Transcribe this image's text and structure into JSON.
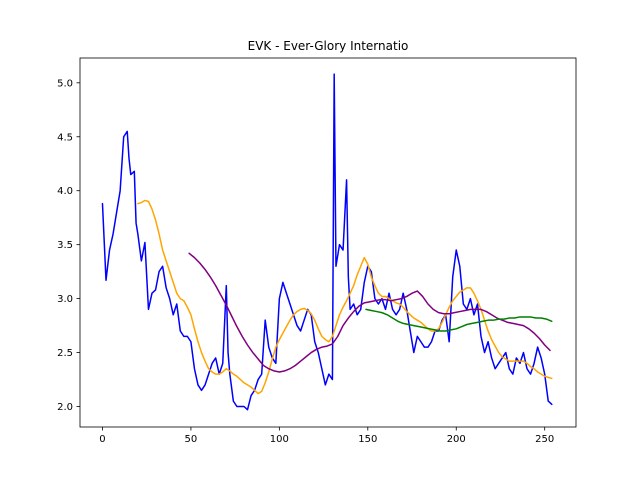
{
  "chart_data": {
    "type": "line",
    "title": "EVK - Ever-Glory Internatio",
    "xlabel": "",
    "ylabel": "",
    "xlim": [
      -12.7,
      267.7
    ],
    "ylim": [
      1.81,
      5.23
    ],
    "xticks": [
      0,
      50,
      100,
      150,
      200,
      250
    ],
    "xtick_labels": [
      "0",
      "50",
      "100",
      "150",
      "200",
      "250"
    ],
    "yticks": [
      2.0,
      2.5,
      3.0,
      3.5,
      4.0,
      4.5,
      5.0
    ],
    "ytick_labels": [
      "2.0",
      "2.5",
      "3.0",
      "3.5",
      "4.0",
      "4.5",
      "5.0"
    ],
    "grid": false,
    "legend": "none",
    "series": [
      {
        "color": "#0000ff",
        "x": [
          0,
          2,
          4,
          6,
          8,
          10,
          12,
          14,
          15,
          16,
          18,
          19,
          20,
          22,
          24,
          26,
          28,
          30,
          32,
          34,
          36,
          38,
          40,
          42,
          44,
          46,
          48,
          50,
          52,
          54,
          56,
          58,
          60,
          62,
          64,
          66,
          68,
          70,
          71,
          72,
          74,
          76,
          78,
          80,
          82,
          84,
          86,
          88,
          90,
          92,
          94,
          96,
          98,
          100,
          102,
          104,
          106,
          108,
          110,
          112,
          114,
          116,
          118,
          120,
          122,
          124,
          126,
          128,
          130,
          131,
          132,
          134,
          136,
          138,
          139,
          140,
          142,
          144,
          146,
          148,
          150,
          152,
          154,
          156,
          158,
          160,
          162,
          164,
          166,
          168,
          170,
          172,
          174,
          176,
          178,
          180,
          182,
          184,
          186,
          188,
          190,
          192,
          194,
          196,
          198,
          200,
          202,
          204,
          206,
          208,
          210,
          212,
          214,
          216,
          218,
          220,
          222,
          224,
          226,
          228,
          230,
          232,
          234,
          236,
          238,
          240,
          242,
          244,
          246,
          248,
          250,
          252,
          254
        ],
        "y": [
          3.88,
          3.17,
          3.45,
          3.6,
          3.8,
          4.0,
          4.5,
          4.55,
          4.3,
          4.15,
          4.18,
          3.7,
          3.6,
          3.35,
          3.52,
          2.9,
          3.05,
          3.08,
          3.25,
          3.3,
          3.1,
          3.0,
          2.85,
          2.95,
          2.7,
          2.65,
          2.65,
          2.6,
          2.35,
          2.2,
          2.15,
          2.2,
          2.3,
          2.4,
          2.45,
          2.3,
          2.4,
          3.12,
          2.5,
          2.3,
          2.05,
          2.0,
          2.0,
          2.0,
          1.97,
          2.1,
          2.15,
          2.25,
          2.3,
          2.8,
          2.55,
          2.45,
          2.4,
          3.0,
          3.15,
          3.05,
          2.95,
          2.85,
          2.75,
          2.7,
          2.8,
          2.9,
          2.85,
          2.6,
          2.5,
          2.35,
          2.2,
          2.3,
          2.25,
          5.08,
          3.3,
          3.5,
          3.45,
          4.1,
          3.2,
          2.9,
          2.95,
          2.85,
          2.9,
          3.15,
          3.3,
          3.25,
          3.0,
          2.95,
          3.0,
          2.9,
          3.05,
          2.9,
          2.85,
          2.9,
          3.05,
          2.9,
          2.7,
          2.5,
          2.65,
          2.6,
          2.55,
          2.55,
          2.6,
          2.7,
          2.7,
          2.8,
          2.85,
          2.6,
          3.2,
          3.45,
          3.3,
          2.95,
          2.9,
          3.0,
          2.85,
          2.95,
          2.65,
          2.5,
          2.6,
          2.45,
          2.35,
          2.4,
          2.45,
          2.5,
          2.35,
          2.3,
          2.45,
          2.4,
          2.5,
          2.35,
          2.3,
          2.4,
          2.55,
          2.45,
          2.3,
          2.05,
          2.02
        ]
      },
      {
        "color": "#ffa500",
        "x": [
          20,
          22,
          24,
          26,
          28,
          30,
          32,
          34,
          36,
          38,
          40,
          42,
          44,
          46,
          48,
          50,
          52,
          54,
          56,
          58,
          60,
          62,
          64,
          66,
          68,
          70,
          72,
          74,
          76,
          78,
          80,
          82,
          84,
          86,
          88,
          90,
          92,
          94,
          96,
          98,
          100,
          102,
          104,
          106,
          108,
          110,
          112,
          114,
          116,
          118,
          120,
          122,
          124,
          126,
          128,
          130,
          132,
          134,
          136,
          138,
          140,
          142,
          144,
          146,
          148,
          150,
          152,
          154,
          156,
          158,
          160,
          162,
          164,
          166,
          168,
          170,
          172,
          174,
          176,
          178,
          180,
          182,
          184,
          186,
          188,
          190,
          192,
          194,
          196,
          198,
          200,
          202,
          204,
          206,
          208,
          210,
          212,
          214,
          216,
          218,
          220,
          222,
          224,
          226,
          228,
          230,
          232,
          234,
          236,
          238,
          240,
          242,
          244,
          246,
          248,
          250,
          252,
          254
        ],
        "y": [
          3.88,
          3.89,
          3.91,
          3.9,
          3.83,
          3.73,
          3.6,
          3.45,
          3.35,
          3.25,
          3.15,
          3.05,
          3.0,
          2.98,
          2.92,
          2.85,
          2.72,
          2.6,
          2.5,
          2.42,
          2.35,
          2.32,
          2.3,
          2.3,
          2.32,
          2.35,
          2.33,
          2.3,
          2.28,
          2.25,
          2.22,
          2.2,
          2.18,
          2.15,
          2.12,
          2.14,
          2.22,
          2.32,
          2.44,
          2.55,
          2.62,
          2.68,
          2.74,
          2.8,
          2.85,
          2.88,
          2.9,
          2.91,
          2.89,
          2.86,
          2.8,
          2.72,
          2.65,
          2.62,
          2.6,
          2.65,
          2.75,
          2.85,
          2.92,
          2.98,
          3.05,
          3.12,
          3.22,
          3.3,
          3.38,
          3.32,
          3.2,
          3.12,
          3.05,
          3.02,
          3.02,
          3.0,
          2.98,
          2.96,
          2.95,
          2.92,
          2.88,
          2.85,
          2.82,
          2.8,
          2.78,
          2.75,
          2.72,
          2.7,
          2.7,
          2.72,
          2.78,
          2.85,
          2.92,
          2.98,
          3.02,
          3.06,
          3.08,
          3.1,
          3.1,
          3.05,
          2.98,
          2.9,
          2.8,
          2.7,
          2.62,
          2.56,
          2.5,
          2.46,
          2.44,
          2.42,
          2.42,
          2.42,
          2.42,
          2.42,
          2.4,
          2.37,
          2.35,
          2.32,
          2.3,
          2.28,
          2.27,
          2.26
        ]
      },
      {
        "color": "#800080",
        "x": [
          49,
          52,
          55,
          58,
          61,
          64,
          67,
          70,
          73,
          76,
          79,
          82,
          85,
          88,
          91,
          94,
          97,
          100,
          103,
          106,
          109,
          112,
          115,
          118,
          121,
          124,
          127,
          130,
          133,
          136,
          139,
          142,
          145,
          148,
          151,
          154,
          157,
          160,
          163,
          166,
          169,
          172,
          175,
          178,
          181,
          184,
          187,
          190,
          193,
          196,
          199,
          202,
          205,
          208,
          211,
          214,
          217,
          220,
          223,
          226,
          229,
          232,
          235,
          238,
          241,
          244,
          247,
          250,
          253
        ],
        "y": [
          3.42,
          3.38,
          3.33,
          3.27,
          3.2,
          3.12,
          3.03,
          2.94,
          2.84,
          2.74,
          2.65,
          2.57,
          2.5,
          2.44,
          2.38,
          2.35,
          2.33,
          2.32,
          2.33,
          2.35,
          2.38,
          2.42,
          2.46,
          2.5,
          2.53,
          2.55,
          2.56,
          2.58,
          2.65,
          2.75,
          2.82,
          2.88,
          2.93,
          2.96,
          2.97,
          2.98,
          2.99,
          2.99,
          2.98,
          2.99,
          3.0,
          3.02,
          3.05,
          3.07,
          3.02,
          2.95,
          2.9,
          2.87,
          2.86,
          2.86,
          2.87,
          2.88,
          2.89,
          2.9,
          2.9,
          2.9,
          2.88,
          2.85,
          2.82,
          2.8,
          2.78,
          2.77,
          2.76,
          2.75,
          2.72,
          2.68,
          2.63,
          2.57,
          2.52
        ]
      },
      {
        "color": "#008000",
        "x": [
          149,
          152,
          155,
          158,
          161,
          164,
          167,
          170,
          173,
          176,
          179,
          182,
          185,
          188,
          191,
          194,
          197,
          200,
          203,
          206,
          209,
          212,
          215,
          218,
          221,
          224,
          227,
          230,
          233,
          236,
          239,
          242,
          245,
          248,
          251,
          254
        ],
        "y": [
          2.9,
          2.89,
          2.88,
          2.87,
          2.85,
          2.82,
          2.79,
          2.77,
          2.76,
          2.75,
          2.74,
          2.73,
          2.72,
          2.71,
          2.7,
          2.7,
          2.71,
          2.72,
          2.74,
          2.76,
          2.77,
          2.78,
          2.79,
          2.8,
          2.8,
          2.81,
          2.81,
          2.82,
          2.82,
          2.83,
          2.83,
          2.83,
          2.82,
          2.82,
          2.81,
          2.79
        ]
      }
    ]
  }
}
